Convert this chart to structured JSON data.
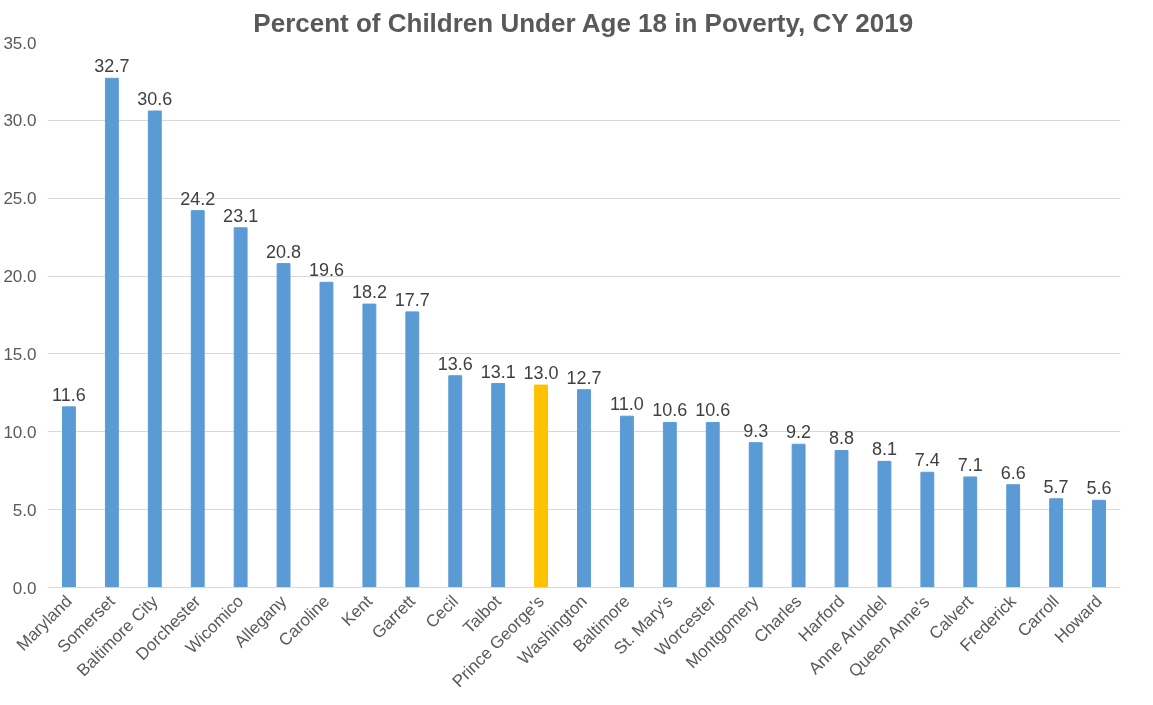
{
  "chart_data": {
    "type": "bar",
    "title": "Percent of Children Under Age 18 in Poverty, CY 2019",
    "categories": [
      "Maryland",
      "Somerset",
      "Baltimore City",
      "Dorchester",
      "Wicomico",
      "Allegany",
      "Caroline",
      "Kent",
      "Garrett",
      "Cecil",
      "Talbot",
      "Prince George's",
      "Washington",
      "Baltimore",
      "St. Mary's",
      "Worcester",
      "Montgomery",
      "Charles",
      "Harford",
      "Anne Arundel",
      "Queen Anne's",
      "Calvert",
      "Frederick",
      "Carroll",
      "Howard"
    ],
    "values": [
      11.6,
      32.7,
      30.6,
      24.2,
      23.1,
      20.8,
      19.6,
      18.2,
      17.7,
      13.6,
      13.1,
      13.0,
      12.7,
      11.0,
      10.6,
      10.6,
      9.3,
      9.2,
      8.8,
      8.1,
      7.4,
      7.1,
      6.6,
      5.7,
      5.6
    ],
    "value_labels": [
      "11.6",
      "32.7",
      "30.6",
      "24.2",
      "23.1",
      "20.8",
      "19.6",
      "18.2",
      "17.7",
      "13.6",
      "13.1",
      "13.0",
      "12.7",
      "11.0",
      "10.6",
      "10.6",
      "9.3",
      "9.2",
      "8.8",
      "8.1",
      "7.4",
      "7.1",
      "6.6",
      "5.7",
      "5.6"
    ],
    "colors": [
      "#5b9bd5",
      "#5b9bd5",
      "#5b9bd5",
      "#5b9bd5",
      "#5b9bd5",
      "#5b9bd5",
      "#5b9bd5",
      "#5b9bd5",
      "#5b9bd5",
      "#5b9bd5",
      "#5b9bd5",
      "#ffc000",
      "#5b9bd5",
      "#5b9bd5",
      "#5b9bd5",
      "#5b9bd5",
      "#5b9bd5",
      "#5b9bd5",
      "#5b9bd5",
      "#5b9bd5",
      "#5b9bd5",
      "#5b9bd5",
      "#5b9bd5",
      "#5b9bd5",
      "#5b9bd5"
    ],
    "ylim": [
      0,
      35
    ],
    "yticks": [
      {
        "value": 0,
        "label": "0.0"
      },
      {
        "value": 5,
        "label": "5.0"
      },
      {
        "value": 10,
        "label": "10.0"
      },
      {
        "value": 15,
        "label": "15.0"
      },
      {
        "value": 20,
        "label": "20.0"
      },
      {
        "value": 25,
        "label": "25.0"
      },
      {
        "value": 30,
        "label": "30.0"
      },
      {
        "value": 35,
        "label": "35.0"
      }
    ],
    "grid": "y"
  }
}
